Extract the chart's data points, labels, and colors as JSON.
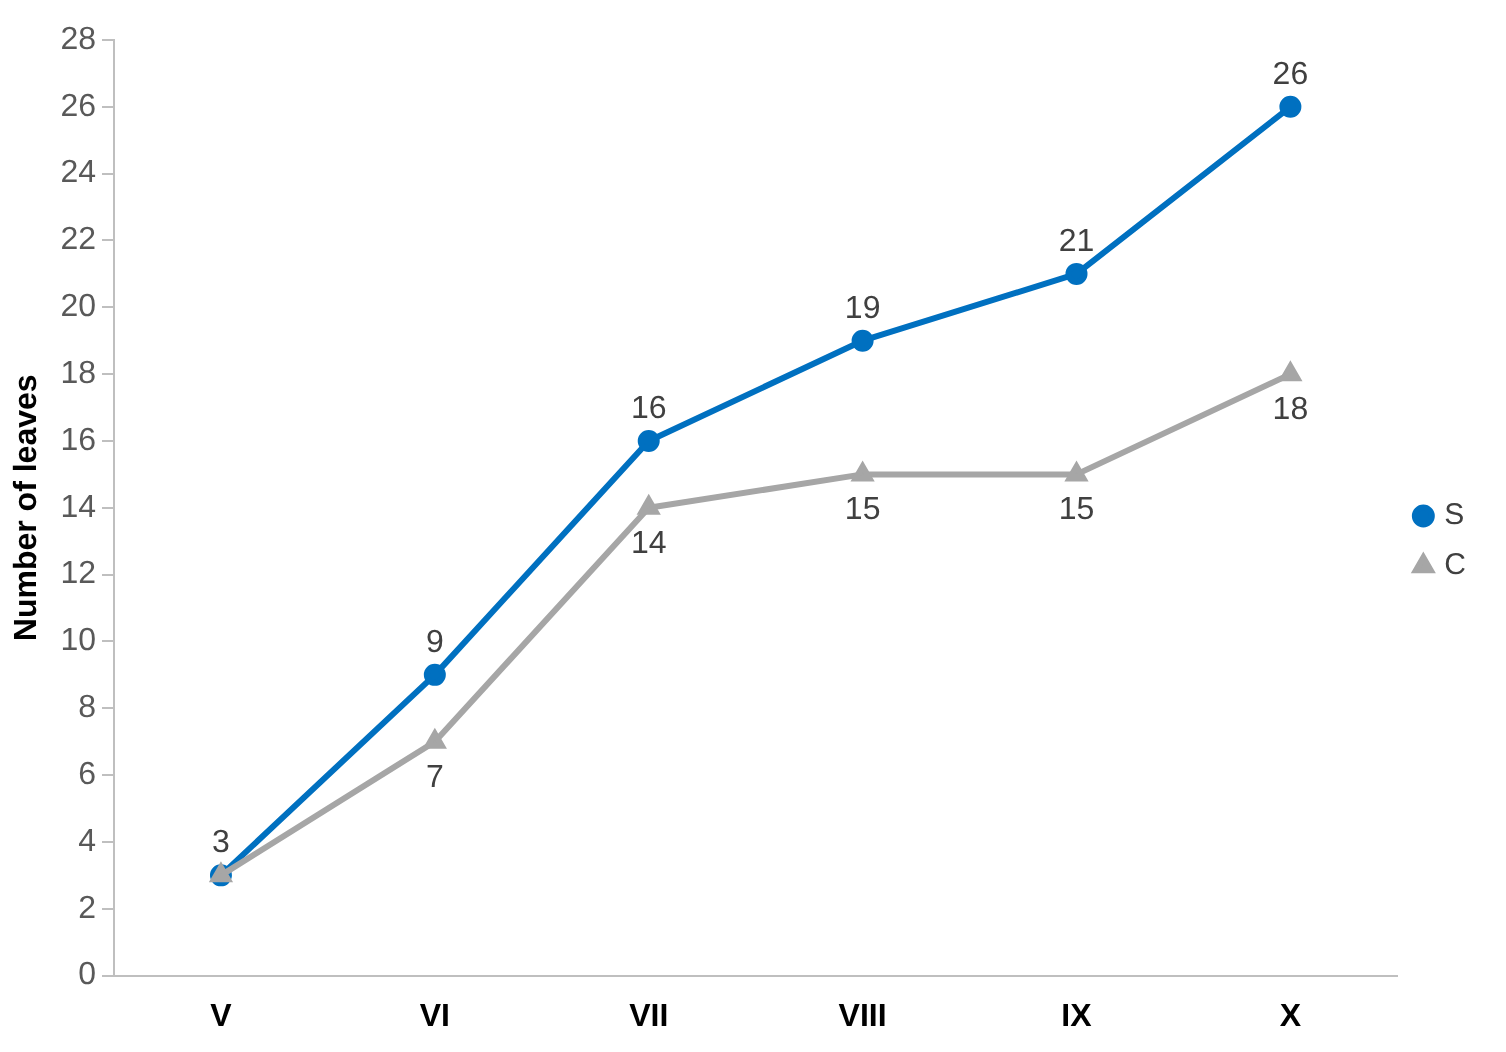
{
  "chart_data": {
    "type": "line",
    "ylabel": "Number of leaves",
    "categories": [
      "V",
      "VI",
      "VII",
      "VIII",
      "IX",
      "X"
    ],
    "ylim": [
      0,
      28
    ],
    "yticks": [
      0,
      2,
      4,
      6,
      8,
      10,
      12,
      14,
      16,
      18,
      20,
      22,
      24,
      26,
      28
    ],
    "grid": false,
    "legend": "right",
    "series": [
      {
        "name": "S",
        "color": "#0070c0",
        "marker": "circle",
        "values": [
          3,
          9,
          16,
          19,
          21,
          26
        ],
        "value_labels": [
          "3",
          "9",
          "16",
          "19",
          "21",
          "26"
        ]
      },
      {
        "name": "C",
        "color": "#a6a6a6",
        "marker": "triangle",
        "values": [
          3,
          7,
          14,
          15,
          15,
          18
        ],
        "value_labels": [
          null,
          "7",
          "14",
          "15",
          "15",
          "18"
        ]
      }
    ]
  }
}
